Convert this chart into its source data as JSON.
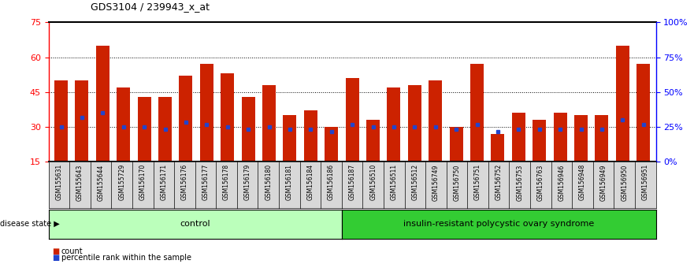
{
  "title": "GDS3104 / 239943_x_at",
  "samples": [
    "GSM155631",
    "GSM155643",
    "GSM155644",
    "GSM155729",
    "GSM156170",
    "GSM156171",
    "GSM156176",
    "GSM156177",
    "GSM156178",
    "GSM156179",
    "GSM156180",
    "GSM156181",
    "GSM156184",
    "GSM156186",
    "GSM156187",
    "GSM156510",
    "GSM156511",
    "GSM156512",
    "GSM156749",
    "GSM156750",
    "GSM156751",
    "GSM156752",
    "GSM156753",
    "GSM156763",
    "GSM156946",
    "GSM156948",
    "GSM156949",
    "GSM156950",
    "GSM156951"
  ],
  "bar_heights": [
    50,
    50,
    65,
    47,
    43,
    43,
    52,
    57,
    53,
    43,
    48,
    35,
    37,
    30,
    51,
    33,
    47,
    48,
    50,
    30,
    57,
    27,
    36,
    33,
    36,
    35,
    35,
    65,
    57
  ],
  "blue_markers": [
    30,
    34,
    36,
    30,
    30,
    29,
    32,
    31,
    30,
    29,
    30,
    29,
    29,
    28,
    31,
    30,
    30,
    30,
    30,
    29,
    31,
    28,
    29,
    29,
    29,
    29,
    29,
    33,
    31
  ],
  "control_count": 14,
  "ylim_left": [
    15,
    75
  ],
  "ylim_right": [
    0,
    100
  ],
  "yticks_left": [
    15,
    30,
    45,
    60,
    75
  ],
  "yticks_right": [
    0,
    25,
    50,
    75,
    100
  ],
  "ytick_labels_right": [
    "0%",
    "25%",
    "50%",
    "75%",
    "100%"
  ],
  "bar_color": "#cc2200",
  "blue_color": "#2244cc",
  "plot_bg": "#ffffff",
  "tick_box_bg": "#d8d8d8",
  "control_bg": "#bbffbb",
  "disease_bg": "#33cc33",
  "grid_lines": [
    30,
    45,
    60
  ],
  "legend_count_label": "count",
  "legend_pct_label": "percentile rank within the sample",
  "disease_state_label": "disease state",
  "control_label": "control",
  "disease_label": "insulin-resistant polycystic ovary syndrome",
  "bar_bottom": 15
}
